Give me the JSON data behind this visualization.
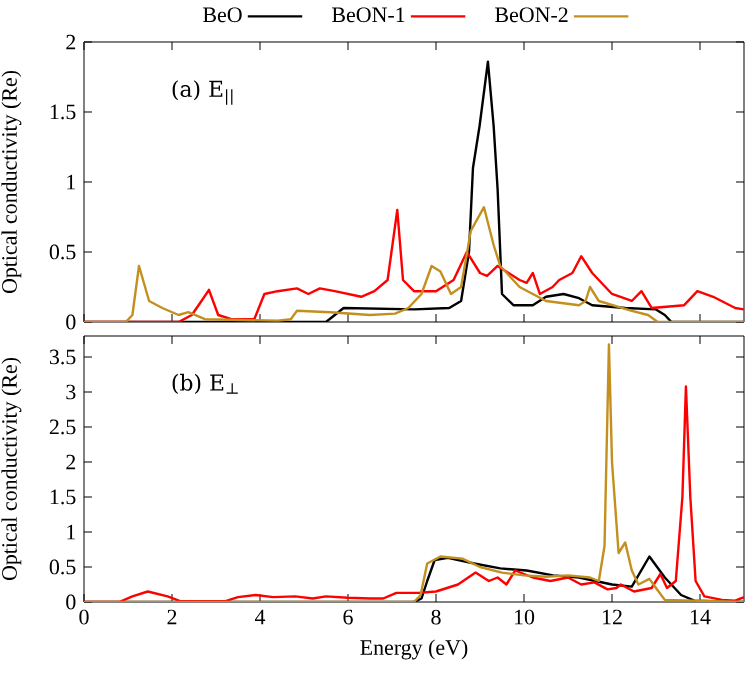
{
  "chart_data": [
    {
      "type": "line",
      "ylabel": "Optical conductivity (Re)",
      "annotations": [
        "(a) E$_{||}$"
      ],
      "xlim": [
        0,
        15
      ],
      "xticks": [
        0,
        2,
        4,
        6,
        8,
        10,
        12,
        14
      ],
      "ylim": [
        0,
        2
      ],
      "yticks": [
        0,
        0.5,
        1,
        1.5,
        2
      ],
      "tick_labels": "y",
      "legend": "top",
      "line_style": "solid",
      "series": [
        {
          "name": "BeO",
          "color": "#000000",
          "x": [
            0,
            5.5,
            5.7,
            5.9,
            7.5,
            8.3,
            8.57,
            8.75,
            8.84,
            8.99,
            9.18,
            9.31,
            9.4,
            9.5,
            9.76,
            10.2,
            10.5,
            10.9,
            11.25,
            11.55,
            12.3,
            13.0,
            13.2,
            13.35,
            15
          ],
          "values": [
            0,
            0,
            0.05,
            0.1,
            0.09,
            0.1,
            0.15,
            0.5,
            1.1,
            1.4,
            1.86,
            1.4,
            0.95,
            0.2,
            0.12,
            0.12,
            0.18,
            0.2,
            0.17,
            0.12,
            0.1,
            0.09,
            0.05,
            0,
            0
          ]
        },
        {
          "name": "BeON-1",
          "color": "#ff0000",
          "x": [
            0,
            2.15,
            2.45,
            2.67,
            2.84,
            3.05,
            3.35,
            3.87,
            4.1,
            4.4,
            4.84,
            5.1,
            5.36,
            5.7,
            6.3,
            6.6,
            6.9,
            7.12,
            7.25,
            7.5,
            8.0,
            8.4,
            8.7,
            9.0,
            9.16,
            9.4,
            9.9,
            10.06,
            10.2,
            10.36,
            10.65,
            10.8,
            11.1,
            11.3,
            11.55,
            12.0,
            12.45,
            12.67,
            12.9,
            13.64,
            13.94,
            14.3,
            14.8,
            15
          ],
          "values": [
            0,
            0,
            0.05,
            0.15,
            0.23,
            0.05,
            0.02,
            0.02,
            0.2,
            0.22,
            0.24,
            0.2,
            0.24,
            0.22,
            0.18,
            0.22,
            0.3,
            0.8,
            0.3,
            0.22,
            0.22,
            0.3,
            0.5,
            0.35,
            0.33,
            0.4,
            0.3,
            0.28,
            0.35,
            0.2,
            0.25,
            0.3,
            0.35,
            0.47,
            0.35,
            0.2,
            0.15,
            0.22,
            0.1,
            0.12,
            0.22,
            0.18,
            0.1,
            0.09
          ]
        },
        {
          "name": "BeON-2",
          "color": "#c39020",
          "x": [
            0,
            0.95,
            1.1,
            1.25,
            1.48,
            1.78,
            2.15,
            2.37,
            2.75,
            4.4,
            4.7,
            4.84,
            5.6,
            6.5,
            7.07,
            7.37,
            7.67,
            7.9,
            8.1,
            8.34,
            8.57,
            8.79,
            9.09,
            9.31,
            9.46,
            9.9,
            10.5,
            11.25,
            11.4,
            11.5,
            11.7,
            12.45,
            12.82,
            13.04,
            15
          ],
          "values": [
            0,
            0,
            0.05,
            0.4,
            0.15,
            0.1,
            0.05,
            0.07,
            0.02,
            0.01,
            0.02,
            0.08,
            0.07,
            0.05,
            0.06,
            0.1,
            0.2,
            0.4,
            0.36,
            0.2,
            0.25,
            0.65,
            0.82,
            0.55,
            0.4,
            0.25,
            0.15,
            0.12,
            0.15,
            0.25,
            0.15,
            0.08,
            0.05,
            0,
            0
          ]
        }
      ]
    },
    {
      "type": "line",
      "xlabel": "Energy (eV)",
      "ylabel": "Optical conductivity (Re)",
      "annotations": [
        "(b) E$_{⊥}$"
      ],
      "xlim": [
        0,
        15
      ],
      "xticks": [
        0,
        2,
        4,
        6,
        8,
        10,
        12,
        14
      ],
      "ylim": [
        0,
        3.8
      ],
      "yticks": [
        0,
        0.5,
        1,
        1.5,
        2,
        2.5,
        3,
        3.5
      ],
      "line_style": "solid",
      "series": [
        {
          "color": "#000000",
          "x": [
            0,
            7.5,
            7.67,
            7.8,
            7.97,
            8.27,
            8.87,
            9.46,
            10.06,
            10.66,
            11.25,
            12.0,
            12.45,
            12.85,
            13.2,
            13.57,
            13.87,
            15
          ],
          "values": [
            0,
            0,
            0.05,
            0.3,
            0.6,
            0.63,
            0.55,
            0.48,
            0.45,
            0.38,
            0.35,
            0.25,
            0.22,
            0.65,
            0.35,
            0.1,
            0.02,
            0
          ]
        },
        {
          "color": "#ff0000",
          "x": [
            0,
            0.8,
            1.1,
            1.45,
            1.9,
            2.2,
            3.2,
            3.5,
            3.9,
            4.3,
            4.8,
            5.2,
            5.5,
            6.0,
            6.5,
            6.8,
            7.1,
            7.6,
            8.0,
            8.5,
            8.9,
            9.2,
            9.4,
            9.6,
            9.8,
            10.2,
            10.6,
            11.0,
            11.3,
            11.6,
            11.9,
            12.1,
            12.2,
            12.5,
            12.9,
            13.1,
            13.25,
            13.45,
            13.6,
            13.68,
            13.78,
            13.9,
            14.1,
            14.5,
            14.8,
            15
          ],
          "values": [
            0,
            0,
            0.08,
            0.15,
            0.08,
            0.01,
            0.01,
            0.07,
            0.1,
            0.07,
            0.08,
            0.05,
            0.08,
            0.06,
            0.05,
            0.05,
            0.13,
            0.13,
            0.15,
            0.25,
            0.42,
            0.3,
            0.35,
            0.25,
            0.45,
            0.35,
            0.3,
            0.35,
            0.25,
            0.28,
            0.18,
            0.2,
            0.25,
            0.15,
            0.2,
            0.4,
            0.2,
            0.3,
            1.5,
            3.08,
            1.5,
            0.3,
            0.08,
            0.03,
            0.02,
            0.07
          ]
        },
        {
          "color": "#c39020",
          "x": [
            0,
            7.5,
            7.65,
            7.8,
            8.1,
            8.6,
            9.0,
            9.5,
            10.0,
            10.5,
            11.0,
            11.5,
            11.7,
            11.83,
            11.93,
            12.0,
            12.15,
            12.3,
            12.45,
            12.6,
            12.85,
            13.0,
            13.2,
            15
          ],
          "values": [
            0,
            0,
            0.1,
            0.55,
            0.65,
            0.62,
            0.5,
            0.42,
            0.38,
            0.36,
            0.38,
            0.35,
            0.3,
            0.8,
            3.68,
            2.0,
            0.7,
            0.85,
            0.45,
            0.25,
            0.33,
            0.2,
            0.03,
            0
          ]
        }
      ]
    }
  ]
}
